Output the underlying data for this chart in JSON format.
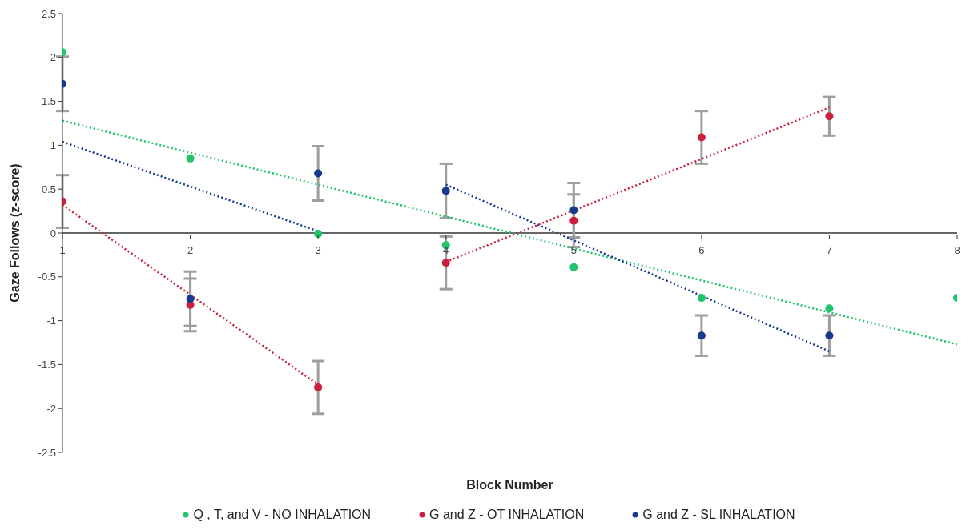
{
  "chart_data": {
    "type": "scatter",
    "xlabel": "Block Number",
    "ylabel": "Gaze Follows (z-score)",
    "xlim": [
      1,
      8
    ],
    "xticks": [
      1,
      2,
      3,
      4,
      5,
      6,
      7,
      8
    ],
    "ylim": [
      -2.5,
      2.5
    ],
    "yticks": [
      -2.5,
      -2,
      -1.5,
      -1,
      -0.5,
      0,
      0.5,
      1,
      1.5,
      2,
      2.5
    ],
    "legend": "bottom",
    "marker": "circle",
    "line_style": "dotted",
    "series": [
      {
        "name": "Q , T, and V - NO INHALATION",
        "color": "#21c46b",
        "x": [
          1,
          2,
          3,
          4,
          5,
          6,
          7,
          8
        ],
        "values": [
          2.06,
          0.85,
          -0.01,
          -0.14,
          -0.39,
          -0.74,
          -0.86,
          -0.74
        ]
      },
      {
        "name": "G and Z - OT INHALATION",
        "color": "#cc1f3c",
        "x": [
          1,
          2,
          3,
          4,
          5,
          6,
          7
        ],
        "values": [
          0.36,
          -0.82,
          -1.76,
          -0.34,
          0.14,
          1.09,
          1.33
        ],
        "errors": [
          0.3,
          0.3,
          0.3,
          0.3,
          0.3,
          0.3,
          0.22
        ]
      },
      {
        "name": "G and Z - SL INHALATION",
        "color": "#173a8f",
        "x": [
          1,
          2,
          3,
          4,
          5,
          6,
          7
        ],
        "values": [
          1.7,
          -0.75,
          0.68,
          0.48,
          0.26,
          -1.17,
          -1.17
        ],
        "errors": [
          0.31,
          0.31,
          0.31,
          0.31,
          0.31,
          0.23,
          0.23
        ]
      },
      {
        "type": "line",
        "marker": "none",
        "color": "#21c46b",
        "x": [
          1,
          8
        ],
        "values": [
          1.28,
          -1.27
        ]
      },
      {
        "type": "line",
        "marker": "none",
        "color": "#173a8f",
        "x": [
          1,
          3
        ],
        "values": [
          1.04,
          0.02
        ]
      },
      {
        "type": "line",
        "marker": "none",
        "color": "#173a8f",
        "x": [
          4,
          7
        ],
        "values": [
          0.55,
          -1.35
        ]
      },
      {
        "type": "line",
        "marker": "none",
        "color": "#cc1f3c",
        "x": [
          1,
          3
        ],
        "values": [
          0.32,
          -1.73
        ]
      },
      {
        "type": "line",
        "marker": "none",
        "color": "#cc1f3c",
        "x": [
          4,
          7
        ],
        "values": [
          -0.33,
          1.43
        ]
      }
    ]
  }
}
